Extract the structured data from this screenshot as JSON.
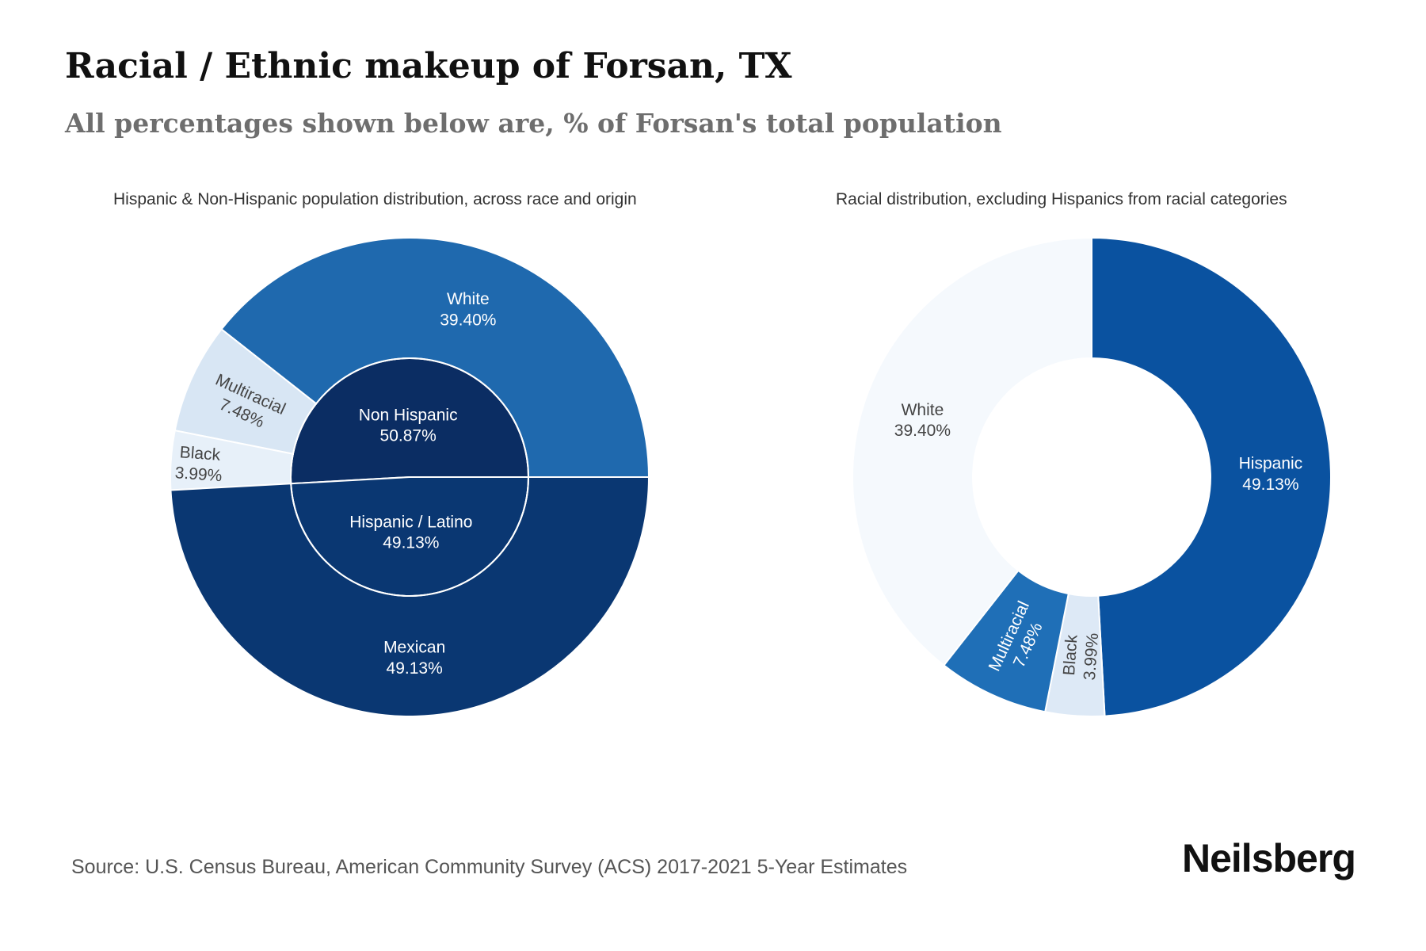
{
  "header": {
    "title": "Racial / Ethnic makeup of Forsan, TX",
    "subtitle": "All percentages shown below are, % of Forsan's total population"
  },
  "chart_data": [
    {
      "type": "pie",
      "title": "Hispanic & Non-Hispanic population distribution, across race and origin",
      "inner": [
        {
          "name": "Non Hispanic",
          "label": "50.87%",
          "value": 50.87,
          "color": "#0b2d63"
        },
        {
          "name": "Hispanic / Latino",
          "label": "49.13%",
          "value": 49.13,
          "color": "#0a3772"
        }
      ],
      "outer": [
        {
          "name": "White",
          "label": "39.40%",
          "value": 39.4,
          "color": "#1f69ae"
        },
        {
          "name": "Multiracial",
          "label": "7.48%",
          "value": 7.48,
          "color": "#d8e6f4"
        },
        {
          "name": "Black",
          "label": "3.99%",
          "value": 3.99,
          "color": "#e7f0f9"
        },
        {
          "name": "Mexican",
          "label": "49.13%",
          "value": 49.13,
          "color": "#0a3772"
        }
      ]
    },
    {
      "type": "pie",
      "title": "Racial distribution, excluding Hispanics from racial categories",
      "slices": [
        {
          "name": "Hispanic",
          "label": "49.13%",
          "value": 49.13,
          "color": "#0a52a0"
        },
        {
          "name": "Black",
          "label": "3.99%",
          "value": 3.99,
          "color": "#dde9f6"
        },
        {
          "name": "Multiracial",
          "label": "7.48%",
          "value": 7.48,
          "color": "#1f6fb7"
        },
        {
          "name": "White",
          "label": "39.40%",
          "value": 39.4,
          "color": "#f5f9fd"
        }
      ]
    }
  ],
  "footer": {
    "source": "Source: U.S. Census Bureau, American Community Survey (ACS) 2017-2021 5-Year Estimates",
    "brand": "Neilsberg"
  }
}
